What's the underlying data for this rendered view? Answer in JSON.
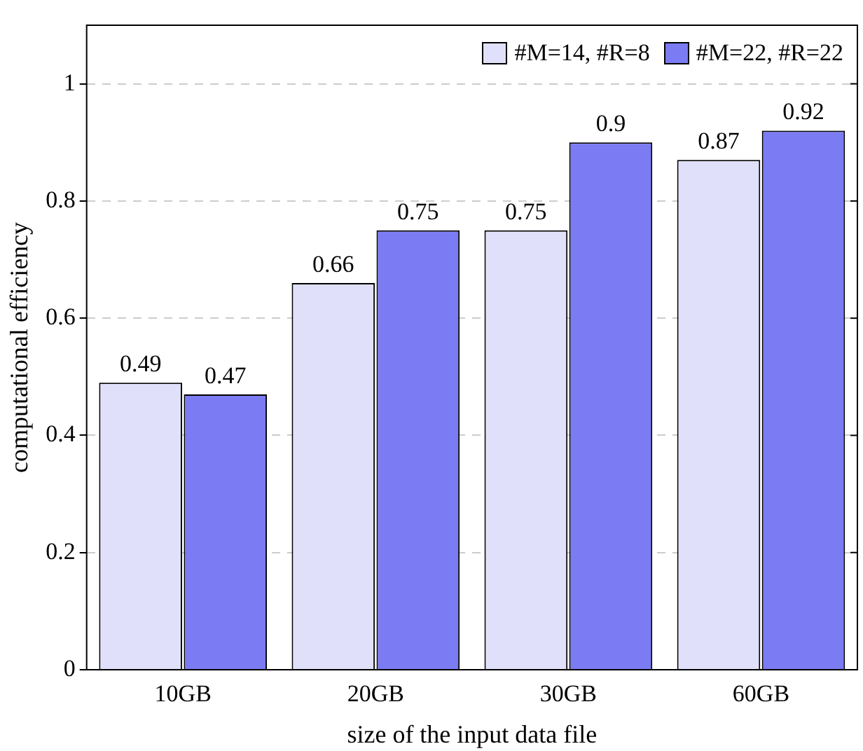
{
  "chart_data": {
    "type": "bar",
    "xlabel": "size of the input data file",
    "ylabel": "computational efficiency",
    "categories": [
      "10GB",
      "20GB",
      "30GB",
      "60GB"
    ],
    "series": [
      {
        "name": "#M=14, #R=8",
        "color": "#e0e0fa",
        "values": [
          0.49,
          0.66,
          0.75,
          0.87
        ]
      },
      {
        "name": "#M=22, #R=22",
        "color": "#7b7bf3",
        "values": [
          0.47,
          0.75,
          0.9,
          0.92
        ]
      }
    ],
    "ylim": [
      0,
      1.1
    ],
    "yticks": [
      0,
      0.2,
      0.4,
      0.6,
      0.8,
      1
    ],
    "grid": "y",
    "legend": "top right",
    "data_labels": true
  }
}
